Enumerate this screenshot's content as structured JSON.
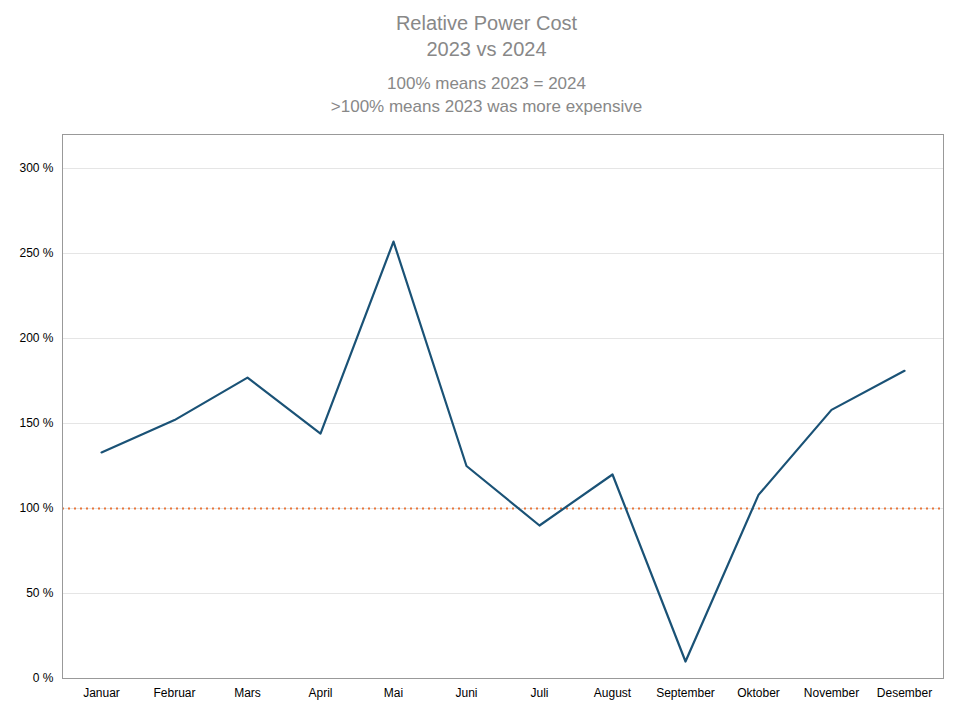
{
  "chart_data": {
    "type": "line",
    "title": "Relative Power Cost\n2023 vs 2024",
    "subtitle": "100% means 2023 = 2024\n>100% means 2023 was more expensive",
    "categories": [
      "Januar",
      "Februar",
      "Mars",
      "April",
      "Mai",
      "Juni",
      "Juli",
      "August",
      "September",
      "Oktober",
      "November",
      "Desember"
    ],
    "values": [
      133,
      152,
      177,
      144,
      257,
      125,
      90,
      120,
      10,
      108,
      158,
      181
    ],
    "color": "#1a5276",
    "hlines": [
      {
        "value": 100,
        "color": "#e8763a",
        "line_style": "dotted"
      }
    ],
    "ylim": [
      0,
      320
    ],
    "yticks": [
      {
        "value": 0,
        "label": "0 %"
      },
      {
        "value": 50,
        "label": "50 %"
      },
      {
        "value": 100,
        "label": "100 %"
      },
      {
        "value": 150,
        "label": "150 %"
      },
      {
        "value": 200,
        "label": "200 %"
      },
      {
        "value": 250,
        "label": "250 %"
      },
      {
        "value": 300,
        "label": "300 %"
      }
    ],
    "grid": true
  }
}
